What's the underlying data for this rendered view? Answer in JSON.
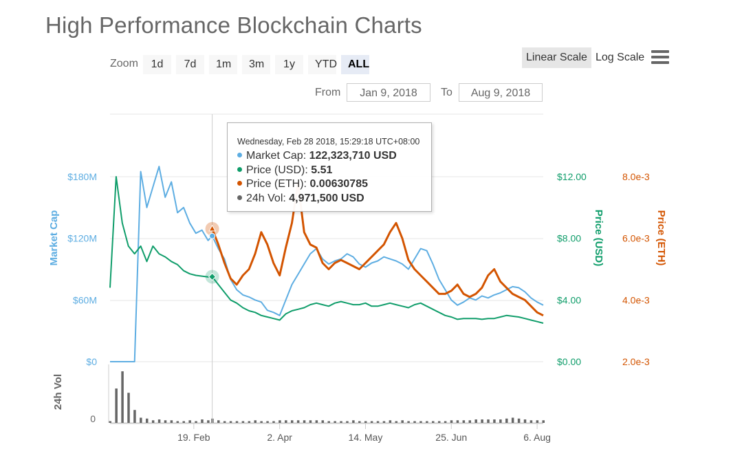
{
  "title": "High Performance Blockchain Charts",
  "zoom": {
    "label": "Zoom",
    "buttons": [
      "1d",
      "7d",
      "1m",
      "3m",
      "1y",
      "YTD",
      "ALL"
    ],
    "active": "ALL"
  },
  "scale": {
    "linear_label": "Linear Scale",
    "log_label": "Log Scale",
    "active": "Linear Scale"
  },
  "range": {
    "from_label": "From",
    "from_value": "Jan 9, 2018",
    "to_label": "To",
    "to_value": "Aug 9, 2018"
  },
  "tooltip": {
    "date": "Wednesday, Feb 28 2018, 15:29:18 UTC+08:00",
    "rows": [
      {
        "label": "Market Cap:",
        "value": "122,323,710 USD",
        "color": "#5dade2"
      },
      {
        "label": "Price (USD):",
        "value": "5.51",
        "color": "#0f9d6a"
      },
      {
        "label": "Price (ETH):",
        "value": "0.00630785",
        "color": "#d35400"
      },
      {
        "label": "24h Vol:",
        "value": "4,971,500 USD",
        "color": "#666666"
      }
    ]
  },
  "colors": {
    "market_cap": "#5dade2",
    "price_usd": "#0f9d6a",
    "price_eth": "#d35400",
    "volume": "#666666",
    "grid": "#e6e6e6"
  },
  "chart_data": {
    "type": "line",
    "x": [
      "2018-01-09",
      "2018-01-12",
      "2018-01-15",
      "2018-01-18",
      "2018-01-21",
      "2018-01-24",
      "2018-01-27",
      "2018-01-30",
      "2018-02-02",
      "2018-02-05",
      "2018-02-08",
      "2018-02-11",
      "2018-02-14",
      "2018-02-17",
      "2018-02-20",
      "2018-02-23",
      "2018-02-26",
      "2018-02-28",
      "2018-03-03",
      "2018-03-06",
      "2018-03-09",
      "2018-03-12",
      "2018-03-15",
      "2018-03-18",
      "2018-03-21",
      "2018-03-24",
      "2018-03-27",
      "2018-03-30",
      "2018-04-02",
      "2018-04-05",
      "2018-04-08",
      "2018-04-11",
      "2018-04-14",
      "2018-04-17",
      "2018-04-20",
      "2018-04-23",
      "2018-04-26",
      "2018-04-29",
      "2018-05-02",
      "2018-05-05",
      "2018-05-08",
      "2018-05-11",
      "2018-05-14",
      "2018-05-17",
      "2018-05-20",
      "2018-05-23",
      "2018-05-26",
      "2018-05-29",
      "2018-06-01",
      "2018-06-04",
      "2018-06-07",
      "2018-06-10",
      "2018-06-13",
      "2018-06-16",
      "2018-06-19",
      "2018-06-22",
      "2018-06-25",
      "2018-06-28",
      "2018-07-01",
      "2018-07-04",
      "2018-07-07",
      "2018-07-10",
      "2018-07-13",
      "2018-07-16",
      "2018-07-19",
      "2018-07-22",
      "2018-07-25",
      "2018-07-28",
      "2018-07-31",
      "2018-08-03",
      "2018-08-06",
      "2018-08-09"
    ],
    "x_ticks": [
      "19. Feb",
      "2. Apr",
      "14. May",
      "25. Jun",
      "6. Aug"
    ],
    "series": [
      {
        "name": "Market Cap",
        "axis": "left",
        "values": [
          0,
          0,
          0,
          0,
          0,
          185000000,
          150000000,
          170000000,
          190000000,
          160000000,
          175000000,
          145000000,
          150000000,
          135000000,
          125000000,
          128000000,
          118000000,
          122323710,
          110000000,
          100000000,
          80000000,
          70000000,
          65000000,
          63000000,
          60000000,
          58000000,
          50000000,
          48000000,
          45000000,
          60000000,
          75000000,
          85000000,
          95000000,
          105000000,
          110000000,
          100000000,
          95000000,
          98000000,
          100000000,
          105000000,
          102000000,
          95000000,
          92000000,
          96000000,
          98000000,
          102000000,
          100000000,
          98000000,
          95000000,
          90000000,
          100000000,
          110000000,
          108000000,
          95000000,
          80000000,
          70000000,
          60000000,
          55000000,
          58000000,
          62000000,
          60000000,
          64000000,
          62000000,
          65000000,
          67000000,
          70000000,
          73000000,
          72000000,
          68000000,
          62000000,
          58000000,
          55000000
        ]
      },
      {
        "name": "Price (USD)",
        "axis": "right1",
        "values": [
          4.8,
          12.0,
          9.0,
          7.5,
          7.0,
          7.5,
          6.5,
          7.5,
          7.0,
          6.8,
          6.5,
          6.3,
          5.9,
          5.7,
          5.6,
          5.55,
          5.5,
          5.51,
          5.0,
          4.5,
          4.0,
          3.8,
          3.5,
          3.3,
          3.2,
          3.0,
          2.9,
          2.8,
          2.7,
          3.1,
          3.3,
          3.4,
          3.5,
          3.7,
          3.8,
          3.7,
          3.6,
          3.8,
          3.9,
          3.8,
          3.7,
          3.7,
          3.8,
          3.6,
          3.6,
          3.7,
          3.8,
          3.7,
          3.6,
          3.5,
          3.7,
          3.8,
          3.6,
          3.4,
          3.2,
          3.0,
          2.9,
          2.75,
          2.8,
          2.8,
          2.8,
          2.75,
          2.8,
          2.8,
          2.9,
          3.0,
          2.95,
          2.9,
          2.8,
          2.7,
          2.6,
          2.5
        ]
      },
      {
        "name": "Price (ETH)",
        "axis": "right2",
        "values": [
          null,
          null,
          null,
          null,
          null,
          null,
          null,
          null,
          null,
          null,
          null,
          null,
          null,
          null,
          null,
          null,
          null,
          0.00630785,
          0.0058,
          0.0052,
          0.0047,
          0.0045,
          0.0048,
          0.005,
          0.0055,
          0.0062,
          0.0058,
          0.0052,
          0.0048,
          0.0057,
          0.0065,
          0.0078,
          0.0062,
          0.0058,
          0.0057,
          0.0052,
          0.005,
          0.0052,
          0.0053,
          0.0052,
          0.0051,
          0.005,
          0.0052,
          0.0054,
          0.0056,
          0.0058,
          0.0062,
          0.0065,
          0.006,
          0.0053,
          0.005,
          0.0048,
          0.0046,
          0.0044,
          0.0042,
          0.0042,
          0.0043,
          0.0045,
          0.0042,
          0.0041,
          0.0042,
          0.0044,
          0.0048,
          0.005,
          0.0046,
          0.0044,
          0.0042,
          0.0041,
          0.004,
          0.0038,
          0.0036,
          0.0035
        ]
      },
      {
        "name": "24h Vol",
        "axis": "volume",
        "values": [
          2,
          40,
          60,
          35,
          15,
          6,
          5,
          3,
          4,
          3,
          3,
          2,
          2,
          3,
          2,
          4,
          3,
          4.97,
          3,
          2,
          2,
          2,
          2,
          2,
          3,
          2,
          2,
          2,
          3,
          3,
          3,
          3,
          3,
          3,
          3,
          3,
          2,
          2,
          2,
          2,
          3,
          2,
          2,
          2,
          2,
          2,
          3,
          2,
          3,
          2,
          2,
          2,
          2,
          2,
          2,
          2,
          3,
          3,
          3,
          3,
          4,
          4,
          4,
          4,
          4,
          5,
          6,
          5,
          4,
          3,
          3,
          3
        ]
      }
    ],
    "axes": {
      "left": {
        "title": "Market Cap",
        "ticks": [
          "$0",
          "$60M",
          "$120M",
          "$180M"
        ],
        "range": [
          0,
          180000000
        ]
      },
      "right1": {
        "title": "Price (USD)",
        "ticks": [
          "$0.00",
          "$4.00",
          "$8.00",
          "$12.00"
        ],
        "range": [
          0,
          12
        ]
      },
      "right2": {
        "title": "Price (ETH)",
        "ticks": [
          "2.0e-3",
          "4.0e-3",
          "6.0e-3",
          "8.0e-3"
        ],
        "range": [
          0.002,
          0.008
        ]
      },
      "volume": {
        "title": "24h Vol",
        "ticks": [
          "0"
        ]
      }
    },
    "grid": true
  }
}
